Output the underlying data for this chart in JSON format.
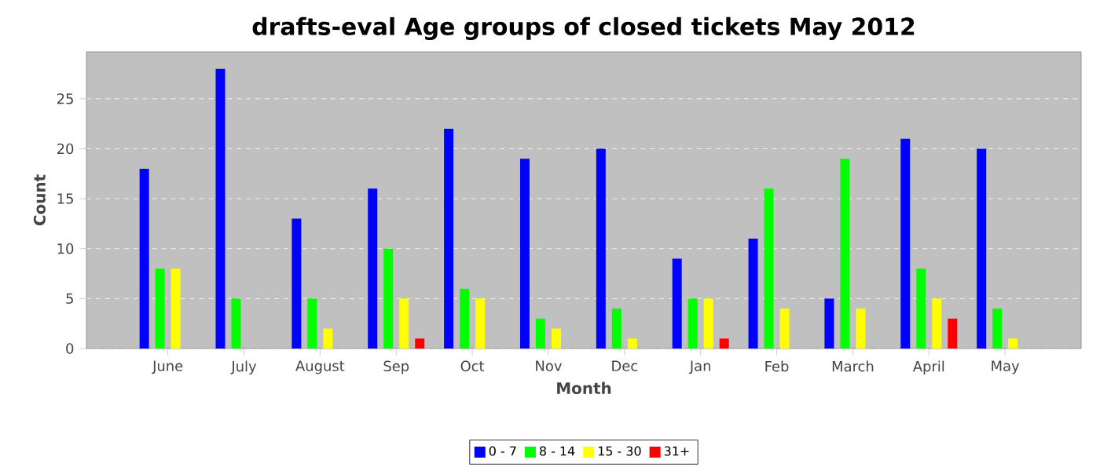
{
  "chart_data": {
    "type": "bar",
    "title": "drafts-eval Age groups of closed tickets May 2012",
    "xlabel": "Month",
    "ylabel": "Count",
    "categories": [
      "June",
      "July",
      "August",
      "Sep",
      "Oct",
      "Nov",
      "Dec",
      "Jan",
      "Feb",
      "March",
      "April",
      "May"
    ],
    "series": [
      {
        "name": "0 - 7",
        "color": "#0000ff",
        "values": [
          18,
          28,
          13,
          16,
          22,
          19,
          20,
          9,
          11,
          5,
          21,
          20
        ]
      },
      {
        "name": "8 - 14",
        "color": "#00ff00",
        "values": [
          8,
          5,
          5,
          10,
          6,
          3,
          4,
          5,
          16,
          19,
          8,
          4
        ]
      },
      {
        "name": "15 - 30",
        "color": "#ffff00",
        "values": [
          8,
          0,
          2,
          5,
          5,
          2,
          1,
          5,
          4,
          4,
          5,
          1
        ]
      },
      {
        "name": "31+",
        "color": "#ff0000",
        "values": [
          0,
          0,
          0,
          1,
          0,
          0,
          0,
          1,
          0,
          0,
          3,
          0
        ]
      }
    ],
    "ylim": [
      0,
      29.7
    ],
    "yticks": [
      0,
      5,
      10,
      15,
      20,
      25
    ],
    "grid": "y",
    "legend": "bottom"
  }
}
